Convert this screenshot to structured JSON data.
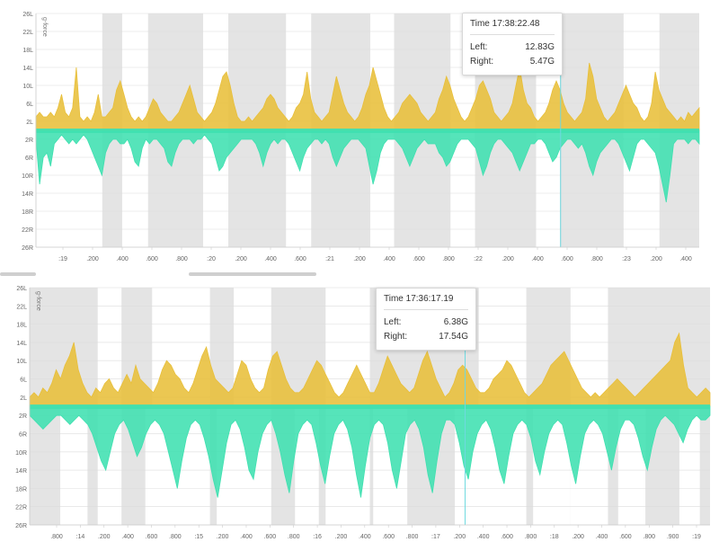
{
  "charts": [
    {
      "id": "top",
      "ylabel": "g-force",
      "ytick_labels": [
        "26L",
        "22L",
        "18L",
        "14L",
        "10L",
        "6L",
        "2L",
        "2R",
        "6R",
        "10R",
        "14R",
        "18R",
        "22R",
        "26R"
      ],
      "xtick_labels": [
        ":19",
        ".200",
        ".400",
        ".600",
        ".800",
        ":20",
        ".200",
        ".400",
        ".600",
        ":21",
        ".200",
        ".400",
        ".600",
        ".800",
        ":22",
        ".200",
        ".400",
        ".600",
        ".800",
        ":23",
        ".200",
        ".400"
      ],
      "tooltip": {
        "time_label": "Time",
        "time": "17:38:22.48",
        "left_label": "Left:",
        "left_value": "12.83G",
        "right_label": "Right:",
        "right_value": "5.47G"
      }
    },
    {
      "id": "bottom",
      "ylabel": "g-force",
      "ytick_labels": [
        "26L",
        "22L",
        "18L",
        "14L",
        "10L",
        "6L",
        "2L",
        "2R",
        "6R",
        "10R",
        "14R",
        "18R",
        "22R",
        "26R"
      ],
      "xtick_labels": [
        ".800",
        ":14",
        ".200",
        ".400",
        ".600",
        ".800",
        ":15",
        ".200",
        ".400",
        ".600",
        ".800",
        ":16",
        ".200",
        ".400",
        ".600",
        ".800",
        ":17",
        ".200",
        ".400",
        ".600",
        ".800",
        ":18",
        ".200",
        ".400",
        ".600",
        ".800",
        ".900",
        ":19"
      ],
      "tooltip": {
        "time_label": "Time",
        "time": "17:36:17.19",
        "left_label": "Left:",
        "left_value": "6.38G",
        "right_label": "Right:",
        "right_value": "17.54G"
      }
    }
  ],
  "chart_data": [
    {
      "type": "area",
      "ylabel": "g-force",
      "ylim": [
        -26,
        26
      ],
      "colors": {
        "left": "#e8bf3a",
        "right": "#3fe0b0",
        "band": "#e4e4e4",
        "cursor": "#6fd9e0"
      },
      "series": [
        {
          "name": "Left",
          "values": [
            3,
            4,
            3,
            3,
            4,
            3,
            5,
            8,
            4,
            3,
            5,
            14,
            3,
            2,
            3,
            2,
            4,
            8,
            3,
            3,
            4,
            5,
            9,
            11,
            8,
            5,
            3,
            2,
            3,
            2,
            3,
            5,
            7,
            6,
            4,
            3,
            2,
            2,
            3,
            4,
            6,
            8,
            10,
            7,
            4,
            3,
            2,
            3,
            4,
            6,
            9,
            12,
            13,
            10,
            6,
            3,
            2,
            2,
            3,
            2,
            3,
            4,
            5,
            7,
            8,
            7,
            5,
            4,
            3,
            2,
            3,
            5,
            6,
            8,
            13,
            7,
            4,
            3,
            2,
            3,
            4,
            8,
            12,
            9,
            6,
            4,
            3,
            2,
            3,
            5,
            8,
            10,
            14,
            11,
            8,
            5,
            3,
            2,
            3,
            4,
            6,
            7,
            8,
            7,
            6,
            4,
            3,
            2,
            3,
            4,
            7,
            9,
            12,
            10,
            7,
            5,
            3,
            2,
            3,
            5,
            7,
            10,
            11,
            9,
            7,
            4,
            3,
            2,
            3,
            4,
            6,
            10,
            14,
            9,
            6,
            5,
            3,
            2,
            3,
            4,
            6,
            9,
            11,
            9,
            6,
            4,
            3,
            2,
            3,
            4,
            7,
            15,
            12,
            7,
            5,
            3,
            2,
            3,
            4,
            6,
            8,
            10,
            8,
            6,
            5,
            3,
            2,
            3,
            6,
            13,
            9,
            7,
            5,
            4,
            3,
            2,
            3,
            2,
            4,
            3,
            4,
            5
          ]
        },
        {
          "name": "Right",
          "values": [
            -2,
            -12,
            -6,
            -5,
            -8,
            -3,
            -2,
            -1,
            -2,
            -3,
            -2,
            -3,
            -2,
            -1,
            -2,
            -4,
            -6,
            -8,
            -10,
            -5,
            -3,
            -2,
            -2,
            -3,
            -3,
            -2,
            -4,
            -7,
            -8,
            -4,
            -2,
            -3,
            -2,
            -2,
            -3,
            -4,
            -7,
            -8,
            -5,
            -3,
            -2,
            -2,
            -2,
            -3,
            -2,
            -2,
            -1,
            -2,
            -3,
            -6,
            -9,
            -8,
            -6,
            -5,
            -4,
            -3,
            -2,
            -2,
            -2,
            -2,
            -3,
            -5,
            -8,
            -5,
            -3,
            -2,
            -3,
            -2,
            -2,
            -3,
            -5,
            -7,
            -9,
            -6,
            -4,
            -3,
            -2,
            -2,
            -3,
            -2,
            -3,
            -6,
            -8,
            -6,
            -4,
            -3,
            -2,
            -2,
            -2,
            -3,
            -4,
            -8,
            -12,
            -9,
            -5,
            -3,
            -2,
            -2,
            -2,
            -3,
            -4,
            -6,
            -8,
            -6,
            -4,
            -3,
            -2,
            -3,
            -3,
            -3,
            -5,
            -6,
            -8,
            -7,
            -5,
            -3,
            -2,
            -2,
            -2,
            -3,
            -4,
            -7,
            -10,
            -8,
            -5,
            -3,
            -2,
            -2,
            -3,
            -4,
            -5,
            -7,
            -9,
            -7,
            -5,
            -3,
            -3,
            -2,
            -2,
            -3,
            -5,
            -7,
            -6,
            -4,
            -3,
            -2,
            -2,
            -3,
            -4,
            -3,
            -5,
            -8,
            -10,
            -7,
            -5,
            -4,
            -3,
            -2,
            -2,
            -3,
            -5,
            -7,
            -9,
            -6,
            -3,
            -2,
            -2,
            -3,
            -4,
            -5,
            -8,
            -12,
            -16,
            -10,
            -3,
            -2,
            -2,
            -2,
            -3,
            -2,
            -2,
            -3
          ]
        }
      ],
      "shaded_bands_fraction": [
        [
          0.1,
          0.13
        ],
        [
          0.169,
          0.252
        ],
        [
          0.29,
          0.377
        ],
        [
          0.415,
          0.504
        ],
        [
          0.54,
          0.625
        ],
        [
          0.662,
          0.754
        ],
        [
          0.79,
          0.886
        ],
        [
          0.94,
          1.0
        ]
      ],
      "white_drop_bands_fraction": [],
      "cursor_fraction": 0.791
    },
    {
      "type": "area",
      "ylabel": "g-force",
      "ylim": [
        -26,
        26
      ],
      "colors": {
        "left": "#e8bf3a",
        "right": "#3fe0b0",
        "band": "#e4e4e4",
        "cursor": "#6fd9e0"
      },
      "series": [
        {
          "name": "Left",
          "values": [
            2,
            3,
            2,
            4,
            3,
            5,
            8,
            6,
            9,
            11,
            14,
            8,
            5,
            3,
            2,
            4,
            3,
            5,
            6,
            4,
            3,
            5,
            7,
            5,
            9,
            6,
            5,
            4,
            3,
            5,
            8,
            10,
            9,
            7,
            6,
            4,
            3,
            5,
            8,
            11,
            13,
            9,
            6,
            5,
            4,
            3,
            4,
            7,
            10,
            9,
            6,
            4,
            3,
            4,
            8,
            11,
            12,
            9,
            6,
            4,
            3,
            3,
            4,
            6,
            8,
            10,
            9,
            7,
            5,
            3,
            2,
            3,
            5,
            7,
            9,
            7,
            5,
            3,
            3,
            5,
            8,
            11,
            9,
            7,
            5,
            4,
            3,
            4,
            7,
            10,
            12,
            9,
            6,
            4,
            2,
            3,
            5,
            8,
            9,
            8,
            6,
            4,
            3,
            3,
            4,
            6,
            7,
            8,
            10,
            9,
            7,
            5,
            3,
            2,
            3,
            4,
            5,
            7,
            9,
            10,
            11,
            12,
            10,
            8,
            6,
            4,
            3,
            2,
            3,
            2,
            3,
            4,
            5,
            6,
            5,
            4,
            3,
            2,
            3,
            4,
            5,
            6,
            7,
            8,
            9,
            10,
            14,
            16,
            9,
            4,
            3,
            2,
            3,
            4,
            3
          ]
        },
        {
          "name": "Right",
          "values": [
            -2,
            -3,
            -4,
            -5,
            -4,
            -3,
            -2,
            -2,
            -3,
            -4,
            -3,
            -2,
            -3,
            -4,
            -6,
            -9,
            -12,
            -14,
            -10,
            -6,
            -4,
            -3,
            -5,
            -8,
            -11,
            -9,
            -6,
            -4,
            -3,
            -4,
            -6,
            -10,
            -14,
            -18,
            -12,
            -7,
            -4,
            -3,
            -4,
            -7,
            -11,
            -16,
            -20,
            -14,
            -8,
            -4,
            -3,
            -5,
            -9,
            -14,
            -16,
            -10,
            -6,
            -4,
            -3,
            -6,
            -10,
            -15,
            -19,
            -12,
            -6,
            -4,
            -3,
            -4,
            -8,
            -13,
            -17,
            -11,
            -6,
            -4,
            -3,
            -5,
            -9,
            -15,
            -20,
            -13,
            -7,
            -4,
            -3,
            -4,
            -8,
            -14,
            -18,
            -12,
            -6,
            -4,
            -3,
            -5,
            -9,
            -15,
            -19,
            -12,
            -6,
            -3,
            -3,
            -4,
            -8,
            -13,
            -16,
            -10,
            -6,
            -4,
            -3,
            -5,
            -9,
            -14,
            -17,
            -11,
            -6,
            -4,
            -3,
            -4,
            -7,
            -12,
            -15,
            -10,
            -6,
            -4,
            -3,
            -4,
            -8,
            -13,
            -17,
            -11,
            -6,
            -4,
            -3,
            -4,
            -6,
            -10,
            -14,
            -9,
            -5,
            -3,
            -3,
            -4,
            -7,
            -11,
            -14,
            -9,
            -5,
            -3,
            -2,
            -3,
            -4,
            -6,
            -8,
            -5,
            -3,
            -2,
            -3,
            -3,
            -2
          ]
        }
      ],
      "shaded_bands_fraction": [
        [
          0.0,
          0.1
        ],
        [
          0.135,
          0.18
        ],
        [
          0.265,
          0.3
        ],
        [
          0.355,
          0.435
        ],
        [
          0.5,
          0.66
        ],
        [
          0.73,
          0.795
        ],
        [
          0.85,
          1.0
        ]
      ],
      "white_drop_bands_fraction": [
        [
          0.045,
          0.085
        ],
        [
          0.17,
          0.225
        ],
        [
          0.275,
          0.33
        ],
        [
          0.39,
          0.425
        ],
        [
          0.505,
          0.555
        ],
        [
          0.625,
          0.68
        ],
        [
          0.74,
          0.795
        ],
        [
          0.865,
          0.905
        ],
        [
          0.955,
          0.985
        ]
      ],
      "cursor_fraction": 0.64
    }
  ]
}
